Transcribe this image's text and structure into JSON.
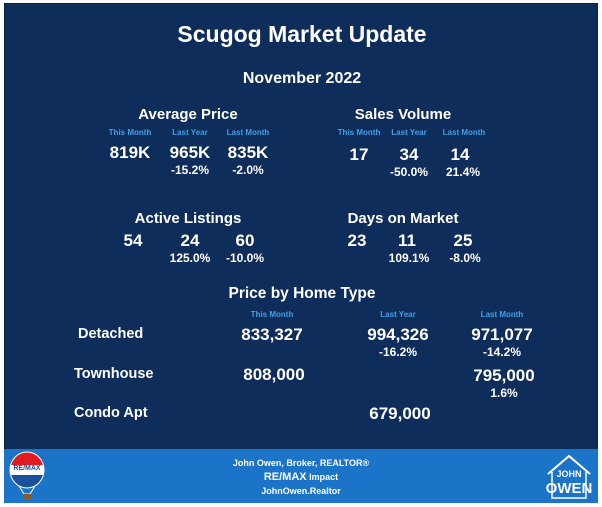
{
  "title": "Scugog Market Update",
  "period": "November 2022",
  "col_labels": {
    "this_month": "This Month",
    "last_year": "Last Year",
    "last_month": "Last Month"
  },
  "average_price": {
    "heading": "Average Price",
    "this_month": "819K",
    "last_year": "965K",
    "last_month": "835K",
    "yoy_change": "-15.2%",
    "mom_change": "-2.0%"
  },
  "sales_volume": {
    "heading": "Sales Volume",
    "this_month": "17",
    "last_year": "34",
    "last_month": "14",
    "yoy_change": "-50.0%",
    "mom_change": "21.4%"
  },
  "active_listings": {
    "heading": "Active Listings",
    "this_month": "54",
    "last_year": "24",
    "last_month": "60",
    "yoy_change": "125.0%",
    "mom_change": "-10.0%"
  },
  "days_on_market": {
    "heading": "Days on Market",
    "this_month": "23",
    "last_year": "11",
    "last_month": "25",
    "yoy_change": "109.1%",
    "mom_change": "-8.0%"
  },
  "price_by_type": {
    "heading": "Price by Home Type",
    "rows": [
      {
        "type": "Detached",
        "this_month": "833,327",
        "last_year": "994,326",
        "yoy_change": "-16.2%",
        "last_month": "971,077",
        "mom_change": "-14.2%"
      },
      {
        "type": "Townhouse",
        "this_month": "808,000",
        "last_year": "",
        "yoy_change": "",
        "last_month": "795,000",
        "mom_change": "1.6%"
      },
      {
        "type": "Condo Apt",
        "this_month": "",
        "last_year": "679,000",
        "yoy_change": "",
        "last_month": "",
        "mom_change": ""
      }
    ]
  },
  "footer": {
    "line1": "John Owen, Broker, REALTOR®",
    "brand": "RE/MAX",
    "brand_suffix": " Impact",
    "line3": "JohnOwen.Realtor",
    "balloon_text": "RE/MAX",
    "logo_line1": "JOHN",
    "logo_line2": "OWEN"
  },
  "colors": {
    "background": "#0f2d5a",
    "label_blue": "#3ea0e8",
    "footer_blue": "#1b74c7",
    "text": "#ffffff"
  }
}
